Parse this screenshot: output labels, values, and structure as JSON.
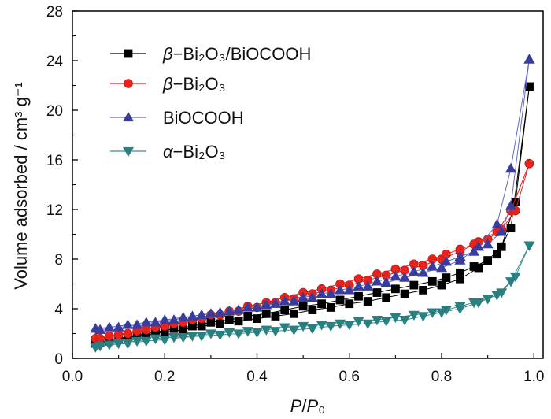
{
  "chart_data": {
    "type": "line",
    "xlabel": "P/P₀",
    "ylabel": "Volume adsorbed / cm³ g⁻¹",
    "xlim": [
      0,
      1.02
    ],
    "ylim": [
      0,
      28
    ],
    "xticks": [
      0,
      0.2,
      0.4,
      0.6,
      0.8,
      1.0
    ],
    "xtick_labels": [
      "0.0",
      "0.2",
      "0.4",
      "0.6",
      "0.8",
      "1.0"
    ],
    "yticks": [
      0,
      4,
      8,
      12,
      16,
      20,
      24,
      28
    ],
    "ytick_labels": [
      "0",
      "4",
      "8",
      "12",
      "16",
      "20",
      "24",
      "28"
    ],
    "grid": false,
    "legend_position": "top-left",
    "series": [
      {
        "name": "β−Bi₂O₃/BiOCOOH",
        "marker": "square",
        "color": "#000000",
        "line_color": "#000000",
        "adsorption": {
          "x": [
            0.05,
            0.08,
            0.12,
            0.16,
            0.2,
            0.24,
            0.28,
            0.32,
            0.36,
            0.4,
            0.44,
            0.48,
            0.52,
            0.56,
            0.6,
            0.64,
            0.68,
            0.72,
            0.76,
            0.8,
            0.84,
            0.88,
            0.92,
            0.95,
            0.99
          ],
          "y": [
            1.2,
            1.4,
            1.7,
            1.9,
            2.1,
            2.3,
            2.6,
            2.8,
            3.0,
            3.2,
            3.4,
            3.6,
            3.9,
            4.1,
            4.4,
            4.6,
            4.9,
            5.2,
            5.5,
            5.9,
            6.4,
            7.3,
            8.4,
            10.5,
            21.9
          ]
        },
        "desorption": {
          "x": [
            0.99,
            0.96,
            0.93,
            0.9,
            0.87,
            0.84,
            0.81,
            0.78,
            0.74,
            0.7,
            0.66,
            0.62,
            0.58,
            0.54,
            0.5,
            0.46,
            0.42,
            0.38,
            0.34,
            0.3,
            0.26,
            0.22,
            0.18,
            0.14,
            0.1,
            0.06
          ],
          "y": [
            21.9,
            12.6,
            9.0,
            7.9,
            7.4,
            6.9,
            6.5,
            6.2,
            5.9,
            5.6,
            5.3,
            5.0,
            4.7,
            4.4,
            4.2,
            3.9,
            3.6,
            3.4,
            3.1,
            2.9,
            2.6,
            2.4,
            2.1,
            1.9,
            1.6,
            1.3
          ]
        }
      },
      {
        "name": "β−Bi₂O₃",
        "marker": "circle",
        "color": "#e8231d",
        "line_color": "#e8231d",
        "adsorption": {
          "x": [
            0.05,
            0.08,
            0.12,
            0.16,
            0.2,
            0.24,
            0.28,
            0.32,
            0.36,
            0.4,
            0.44,
            0.48,
            0.52,
            0.56,
            0.6,
            0.64,
            0.68,
            0.72,
            0.76,
            0.8,
            0.84,
            0.88,
            0.92,
            0.95,
            0.99
          ],
          "y": [
            1.6,
            1.8,
            2.0,
            2.3,
            2.6,
            2.9,
            3.2,
            3.5,
            3.8,
            4.1,
            4.5,
            4.8,
            5.2,
            5.5,
            5.9,
            6.3,
            6.7,
            7.1,
            7.5,
            8.0,
            8.6,
            9.4,
            10.2,
            11.9,
            15.7
          ]
        },
        "desorption": {
          "x": [
            0.99,
            0.96,
            0.93,
            0.9,
            0.87,
            0.84,
            0.81,
            0.78,
            0.74,
            0.7,
            0.66,
            0.62,
            0.58,
            0.54,
            0.5,
            0.46,
            0.42,
            0.38,
            0.34,
            0.3,
            0.26,
            0.22,
            0.18,
            0.14,
            0.1,
            0.06
          ],
          "y": [
            15.7,
            11.9,
            10.4,
            9.6,
            9.2,
            8.8,
            8.4,
            8.0,
            7.6,
            7.2,
            6.8,
            6.4,
            6.0,
            5.6,
            5.3,
            4.9,
            4.5,
            4.2,
            3.8,
            3.5,
            3.1,
            2.8,
            2.5,
            2.2,
            1.9,
            1.6
          ]
        }
      },
      {
        "name": "BiOCOOH",
        "marker": "triangle-up",
        "color": "#383c9c",
        "line_color": "#6468c4",
        "adsorption": {
          "x": [
            0.05,
            0.08,
            0.12,
            0.16,
            0.2,
            0.24,
            0.28,
            0.32,
            0.36,
            0.4,
            0.44,
            0.48,
            0.52,
            0.56,
            0.6,
            0.64,
            0.68,
            0.72,
            0.76,
            0.8,
            0.84,
            0.88,
            0.92,
            0.95,
            0.99
          ],
          "y": [
            2.4,
            2.5,
            2.7,
            2.9,
            3.1,
            3.3,
            3.5,
            3.7,
            3.9,
            4.1,
            4.4,
            4.6,
            4.9,
            5.2,
            5.5,
            5.8,
            6.1,
            6.5,
            6.9,
            7.3,
            7.9,
            9.0,
            10.8,
            15.3,
            24.1
          ]
        },
        "desorption": {
          "x": [
            0.99,
            0.95,
            0.93,
            0.9,
            0.87,
            0.84,
            0.81,
            0.78,
            0.74,
            0.7,
            0.66,
            0.62,
            0.58,
            0.54,
            0.5,
            0.46,
            0.42,
            0.38,
            0.34,
            0.3,
            0.26,
            0.22,
            0.18,
            0.14,
            0.1,
            0.06
          ],
          "y": [
            24.1,
            12.3,
            10.2,
            9.2,
            8.6,
            8.2,
            7.8,
            7.4,
            7.0,
            6.6,
            6.2,
            5.8,
            5.5,
            5.2,
            4.9,
            4.6,
            4.3,
            4.1,
            3.8,
            3.6,
            3.4,
            3.1,
            2.9,
            2.7,
            2.5,
            2.3
          ]
        }
      },
      {
        "name": "α−Bi₂O₃",
        "marker": "triangle-down",
        "color": "#2a8080",
        "line_color": "#3f8f8f",
        "adsorption": {
          "x": [
            0.05,
            0.08,
            0.12,
            0.16,
            0.2,
            0.24,
            0.28,
            0.32,
            0.36,
            0.4,
            0.44,
            0.48,
            0.52,
            0.56,
            0.6,
            0.64,
            0.68,
            0.72,
            0.76,
            0.8,
            0.84,
            0.88,
            0.92,
            0.95,
            0.99
          ],
          "y": [
            0.9,
            1.1,
            1.2,
            1.4,
            1.5,
            1.7,
            1.8,
            1.9,
            2.0,
            2.1,
            2.2,
            2.3,
            2.4,
            2.6,
            2.7,
            2.8,
            3.0,
            3.1,
            3.4,
            3.7,
            4.0,
            4.5,
            5.1,
            6.2,
            9.1
          ]
        },
        "desorption": {
          "x": [
            0.99,
            0.96,
            0.93,
            0.9,
            0.87,
            0.84,
            0.81,
            0.78,
            0.74,
            0.7,
            0.66,
            0.62,
            0.58,
            0.54,
            0.5,
            0.46,
            0.42,
            0.38,
            0.34,
            0.3,
            0.26,
            0.22,
            0.18,
            0.14,
            0.1,
            0.06
          ],
          "y": [
            9.1,
            6.6,
            5.3,
            4.8,
            4.5,
            4.2,
            3.9,
            3.7,
            3.5,
            3.3,
            3.1,
            3.0,
            2.8,
            2.7,
            2.6,
            2.5,
            2.3,
            2.2,
            2.1,
            2.0,
            1.8,
            1.7,
            1.6,
            1.4,
            1.2,
            1.0
          ]
        }
      }
    ]
  }
}
